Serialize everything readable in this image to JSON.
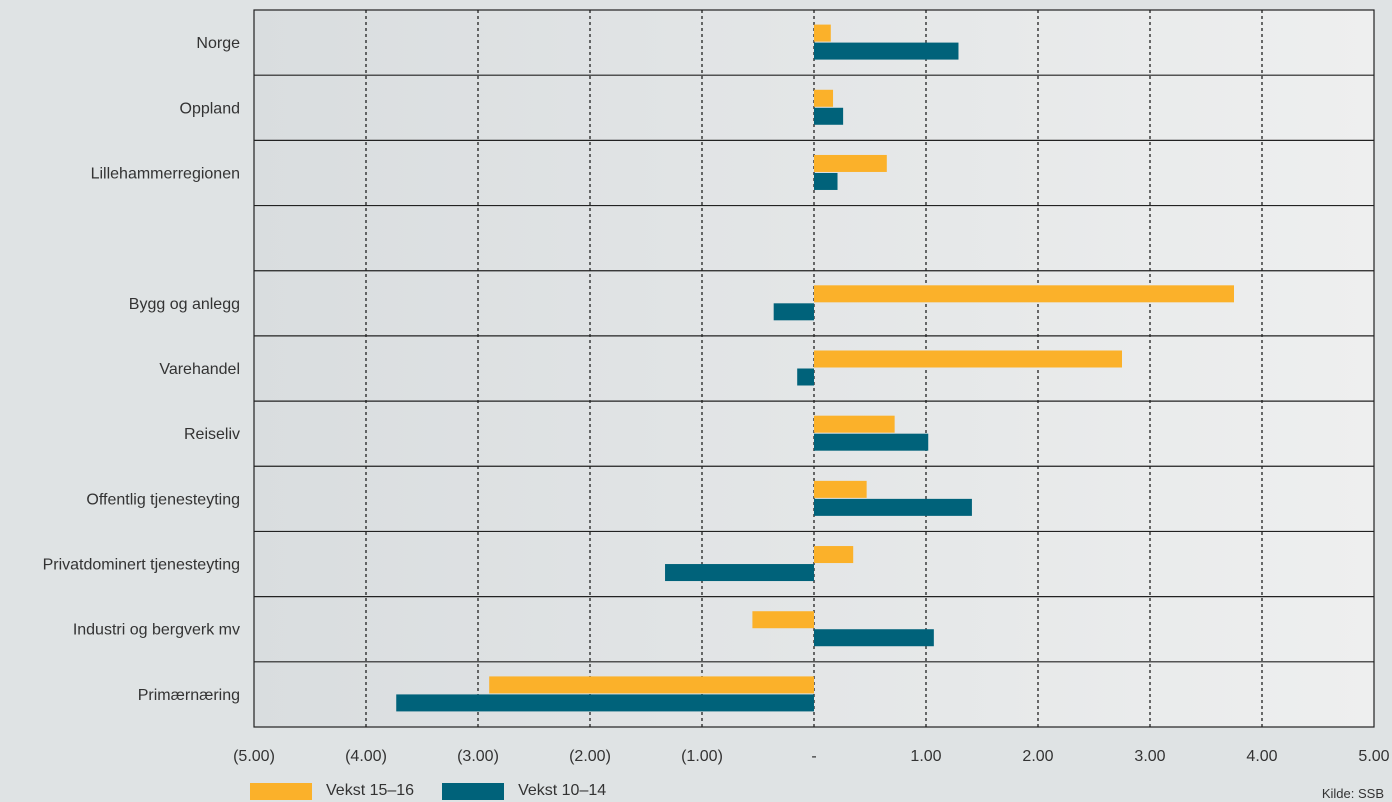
{
  "chart_data": {
    "type": "bar",
    "orientation": "horizontal",
    "categories": [
      "Norge",
      "Oppland",
      "Lillehammerregionen",
      "",
      "Bygg og anlegg",
      "Varehandel",
      "Reiseliv",
      "Offentlig tjenesteyting",
      "Privatdominert tjenesteyting",
      "Industri og bergverk mv",
      "Primærnæring"
    ],
    "series": [
      {
        "name": "Vekst 15–16",
        "color": "#fbb12a",
        "values": [
          0.15,
          0.17,
          0.65,
          null,
          3.75,
          2.75,
          0.72,
          0.47,
          0.35,
          -0.55,
          -2.9
        ]
      },
      {
        "name": "Vekst 10–14",
        "color": "#00627a",
        "values": [
          1.29,
          0.26,
          0.21,
          null,
          -0.36,
          -0.15,
          1.02,
          1.41,
          -1.33,
          1.07,
          -3.73
        ]
      }
    ],
    "xlim": [
      -5,
      5
    ],
    "xticks": [
      -5,
      -4,
      -3,
      -2,
      -1,
      0,
      1,
      2,
      3,
      4,
      5
    ],
    "xticklabels": [
      "(5.00)",
      "(4.00)",
      "(3.00)",
      "(2.00)",
      "(1.00)",
      "-",
      "1.00",
      "2.00",
      "3.00",
      "4.00",
      "5.00"
    ],
    "grid": "vertical-dotted",
    "legend_position": "bottom-left",
    "source_note": "Kilde: SSB"
  }
}
